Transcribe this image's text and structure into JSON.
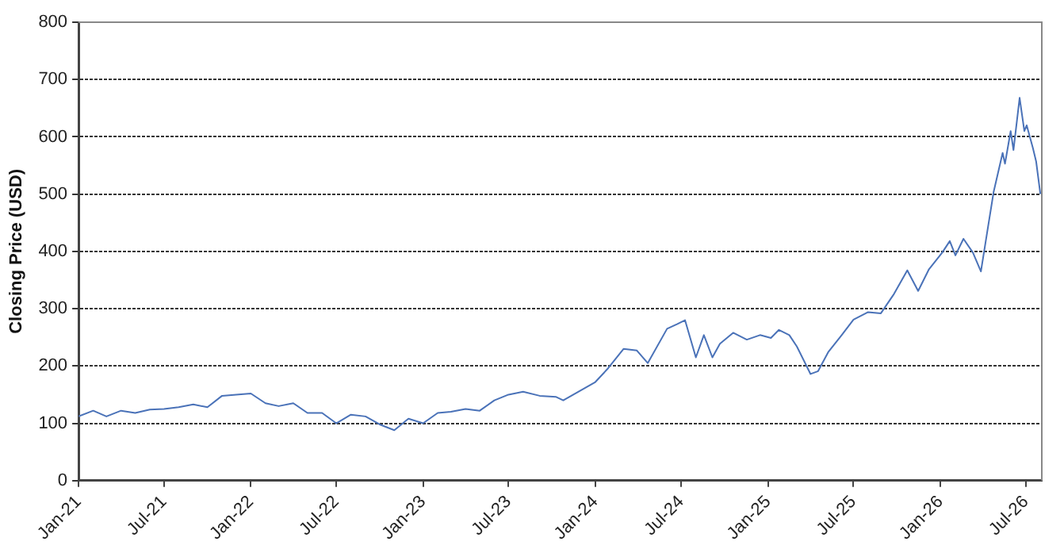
{
  "chart_data": {
    "type": "line",
    "ylabel": "Closing Price (USD)",
    "x": [
      "2021-01-01",
      "2021-02-01",
      "2021-03-01",
      "2021-04-01",
      "2021-05-01",
      "2021-06-01",
      "2021-07-01",
      "2021-08-01",
      "2021-09-01",
      "2021-10-01",
      "2021-11-01",
      "2021-12-01",
      "2022-01-01",
      "2022-02-01",
      "2022-03-01",
      "2022-04-01",
      "2022-05-01",
      "2022-06-01",
      "2022-07-01",
      "2022-08-01",
      "2022-09-01",
      "2022-10-01",
      "2022-11-01",
      "2022-12-01",
      "2023-01-01",
      "2023-02-01",
      "2023-03-01",
      "2023-04-01",
      "2023-05-01",
      "2023-06-01",
      "2023-07-01",
      "2023-08-01",
      "2023-09-05",
      "2023-10-10",
      "2023-10-25",
      "2024-01-01",
      "2024-01-28",
      "2024-03-01",
      "2024-03-29",
      "2024-04-21",
      "2024-06-01",
      "2024-06-22",
      "2024-07-09",
      "2024-08-01",
      "2024-08-18",
      "2024-09-05",
      "2024-09-21",
      "2024-10-19",
      "2024-11-17",
      "2024-12-15",
      "2025-01-07",
      "2025-01-24",
      "2025-02-15",
      "2025-03-03",
      "2025-04-01",
      "2025-04-17",
      "2025-05-09",
      "2025-06-06",
      "2025-07-01",
      "2025-08-01",
      "2025-08-28",
      "2025-09-25",
      "2025-10-23",
      "2025-11-15",
      "2025-12-08",
      "2026-01-05",
      "2026-01-21",
      "2026-02-02",
      "2026-02-19",
      "2026-03-11",
      "2026-03-28",
      "2026-04-09",
      "2026-04-24",
      "2026-05-13",
      "2026-05-18",
      "2026-05-30",
      "2026-06-05",
      "2026-06-18",
      "2026-06-28",
      "2026-07-03",
      "2026-07-16",
      "2026-07-23",
      "2026-08-01"
    ],
    "series": [
      {
        "color": "#4a72b8",
        "values": [
          112,
          122,
          112,
          122,
          118,
          124,
          125,
          128,
          133,
          128,
          148,
          150,
          152,
          135,
          130,
          135,
          118,
          118,
          100,
          115,
          112,
          98,
          88,
          108,
          100,
          118,
          120,
          125,
          122,
          140,
          150,
          155,
          148,
          146,
          140,
          172,
          196,
          230,
          227,
          205,
          265,
          273,
          280,
          215,
          254,
          215,
          239,
          258,
          246,
          254,
          249,
          263,
          254,
          234,
          186,
          191,
          225,
          254,
          281,
          294,
          292,
          326,
          367,
          331,
          369,
          398,
          418,
          393,
          422,
          398,
          365,
          427,
          504,
          572,
          553,
          610,
          577,
          668,
          610,
          620,
          581,
          557,
          500
        ]
      }
    ],
    "xlim": [
      "2021-01-01",
      "2026-08-04"
    ],
    "xticks": [
      {
        "value": "2021-01-01",
        "label": "Jan-21"
      },
      {
        "value": "2021-07-01",
        "label": "Jul-21"
      },
      {
        "value": "2022-01-01",
        "label": "Jan-22"
      },
      {
        "value": "2022-07-01",
        "label": "Jul-22"
      },
      {
        "value": "2023-01-01",
        "label": "Jan-23"
      },
      {
        "value": "2023-07-01",
        "label": "Jul-23"
      },
      {
        "value": "2024-01-01",
        "label": "Jan-24"
      },
      {
        "value": "2024-07-01",
        "label": "Jul-24"
      },
      {
        "value": "2025-01-01",
        "label": "Jan-25"
      },
      {
        "value": "2025-07-01",
        "label": "Jul-25"
      },
      {
        "value": "2026-01-01",
        "label": "Jan-26"
      },
      {
        "value": "2026-07-01",
        "label": "Jul-26"
      }
    ],
    "ylim": [
      0,
      800
    ],
    "yticks": [
      0,
      100,
      200,
      300,
      400,
      500,
      600,
      700,
      800
    ],
    "grid": "y",
    "legend": false,
    "marker": "none",
    "line_style": "solid"
  }
}
